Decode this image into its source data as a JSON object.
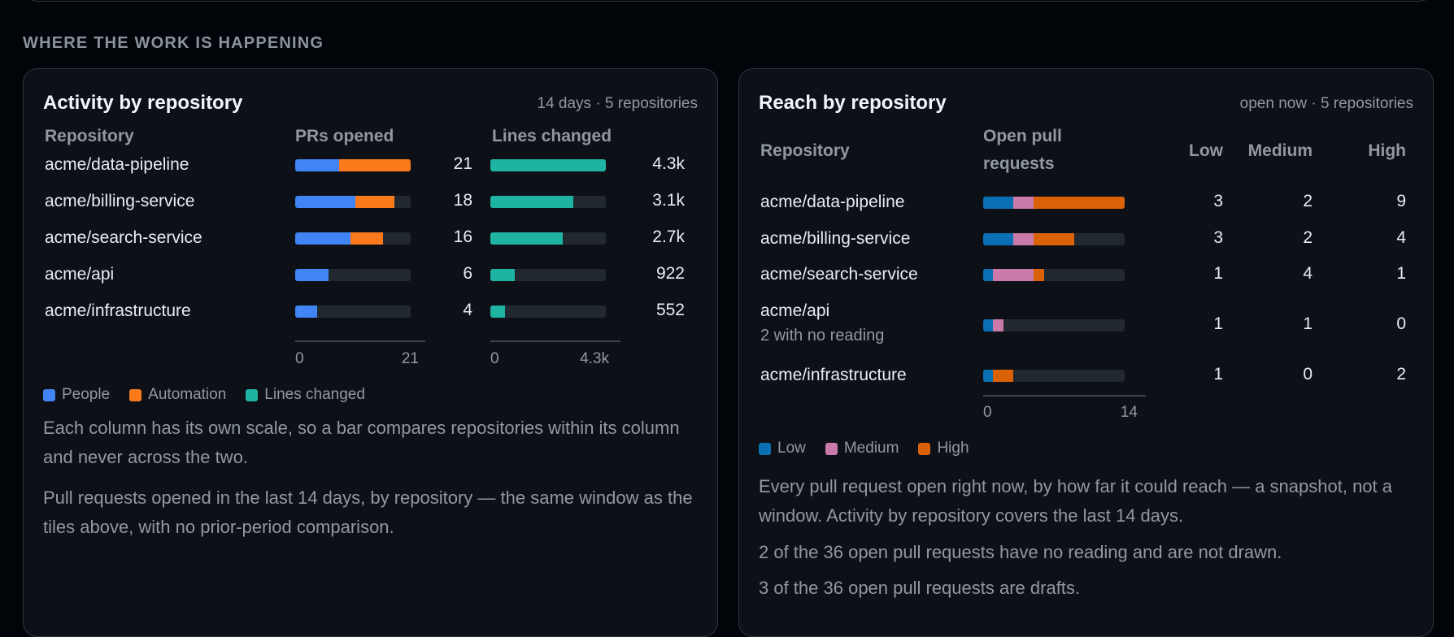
{
  "section": {
    "title": "WHERE THE WORK IS HAPPENING"
  },
  "colors": {
    "people": "#4184f3",
    "automation": "#fb7b1c",
    "lines": "#1fb4a2",
    "low": "#0b6fb3",
    "medium": "#c97aab",
    "high": "#db6106"
  },
  "activity": {
    "title": "Activity by repository",
    "meta": "14 days · 5 repositories",
    "headers": {
      "repository": "Repository",
      "prs": "PRs opened",
      "lines": "Lines changed"
    },
    "chart_data": {
      "type": "bar",
      "categories": [
        "acme/data-pipeline",
        "acme/billing-service",
        "acme/search-service",
        "acme/api",
        "acme/infrastructure"
      ],
      "prs": [
        {
          "total": 21,
          "people": 8,
          "automation": 13,
          "label": "21"
        },
        {
          "total": 18,
          "people": 11,
          "automation": 7,
          "label": "18"
        },
        {
          "total": 16,
          "people": 10,
          "automation": 6,
          "label": "16"
        },
        {
          "total": 6,
          "people": 6,
          "automation": 0,
          "label": "6"
        },
        {
          "total": 4,
          "people": 4,
          "automation": 0,
          "label": "4"
        }
      ],
      "lines": [
        {
          "value": 4300,
          "label": "4.3k"
        },
        {
          "value": 3100,
          "label": "3.1k"
        },
        {
          "value": 2700,
          "label": "2.7k"
        },
        {
          "value": 922,
          "label": "922"
        },
        {
          "value": 552,
          "label": "552"
        }
      ],
      "prs_axis": {
        "min": 0,
        "max": 21,
        "min_label": "0",
        "max_label": "21"
      },
      "lines_axis": {
        "min": 0,
        "max": 4300,
        "min_label": "0",
        "max_label": "4.3k"
      }
    },
    "legend": {
      "people": "People",
      "automation": "Automation",
      "lines": "Lines changed"
    },
    "para1": "Each column has its own scale, so a bar compares repositories within its column and never across the two.",
    "para2": "Pull requests opened in the last 14 days, by repository — the same window as the tiles above, with no prior-period comparison."
  },
  "reach": {
    "title": "Reach by repository",
    "meta": "open now · 5 repositories",
    "headers": {
      "repository": "Repository",
      "open": "Open pull requests",
      "low": "Low",
      "medium": "Medium",
      "high": "High"
    },
    "chart_data": {
      "type": "bar",
      "categories": [
        "acme/data-pipeline",
        "acme/billing-service",
        "acme/search-service",
        "acme/api",
        "acme/infrastructure"
      ],
      "sublabels": [
        "",
        "",
        "",
        "2 with no reading",
        ""
      ],
      "series": [
        {
          "name": "Low",
          "values": [
            3,
            3,
            1,
            1,
            1
          ]
        },
        {
          "name": "Medium",
          "values": [
            2,
            2,
            4,
            1,
            0
          ]
        },
        {
          "name": "High",
          "values": [
            9,
            4,
            1,
            0,
            2
          ]
        }
      ],
      "axis": {
        "min": 0,
        "max": 14,
        "min_label": "0",
        "max_label": "14"
      }
    },
    "legend": {
      "low": "Low",
      "medium": "Medium",
      "high": "High"
    },
    "para1": "Every pull request open right now, by how far it could reach — a snapshot, not a window. Activity by repository covers the last 14 days.",
    "para2": "2 of the 36 open pull requests have no reading and are not drawn.",
    "para3": "3 of the 36 open pull requests are drafts."
  }
}
